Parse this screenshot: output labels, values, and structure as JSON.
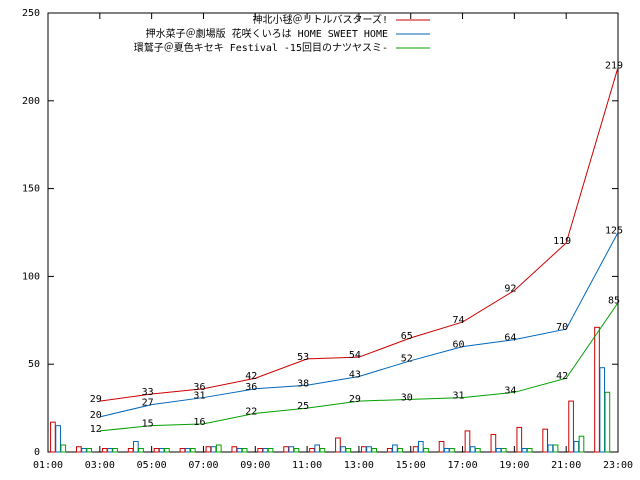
{
  "chart_data": {
    "type": "line",
    "xlim": [
      1,
      23
    ],
    "xticks": [
      {
        "value": 1,
        "label": "01:00"
      },
      {
        "value": 3,
        "label": "03:00"
      },
      {
        "value": 5,
        "label": "05:00"
      },
      {
        "value": 7,
        "label": "07:00"
      },
      {
        "value": 9,
        "label": "09:00"
      },
      {
        "value": 11,
        "label": "11:00"
      },
      {
        "value": 13,
        "label": "13:00"
      },
      {
        "value": 15,
        "label": "15:00"
      },
      {
        "value": 17,
        "label": "17:00"
      },
      {
        "value": 19,
        "label": "19:00"
      },
      {
        "value": 21,
        "label": "21:00"
      },
      {
        "value": 23,
        "label": "23:00"
      }
    ],
    "ylim": [
      0,
      250
    ],
    "yticks": [
      0,
      50,
      100,
      150,
      200,
      250
    ],
    "grid": false,
    "legend": "top-right",
    "bar_x": [
      1,
      2,
      3,
      4,
      5,
      6,
      7,
      8,
      9,
      10,
      11,
      12,
      13,
      14,
      15,
      16,
      17,
      18,
      19,
      20,
      21,
      22
    ],
    "series": [
      {
        "name": "神北小毬＠リトルバスターズ!",
        "color": "#cc0000",
        "x": [
          3,
          5,
          7,
          9,
          11,
          13,
          15,
          17,
          19,
          21,
          23
        ],
        "values": [
          29,
          33,
          36,
          42,
          53,
          54,
          65,
          74,
          92,
          119,
          219
        ],
        "bar_values": [
          17,
          3,
          2,
          2,
          2,
          2,
          3,
          3,
          2,
          3,
          2,
          8,
          3,
          2,
          3,
          6,
          12,
          10,
          14,
          13,
          29,
          71
        ]
      },
      {
        "name": "押水菜子＠劇場版 花咲くいろは HOME SWEET HOME",
        "color": "#0066bb",
        "x": [
          3,
          5,
          7,
          9,
          11,
          13,
          15,
          17,
          19,
          21,
          23
        ],
        "values": [
          20,
          27,
          31,
          36,
          38,
          43,
          52,
          60,
          64,
          70,
          125
        ],
        "bar_values": [
          15,
          2,
          2,
          6,
          2,
          2,
          3,
          2,
          2,
          3,
          4,
          3,
          3,
          4,
          6,
          2,
          3,
          2,
          2,
          4,
          6,
          48
        ]
      },
      {
        "name": "環鷲子＠夏色キセキ Festival -15回目のナツヤスミ-",
        "color": "#00a000",
        "x": [
          3,
          5,
          7,
          9,
          11,
          13,
          15,
          17,
          19,
          21,
          23
        ],
        "values": [
          12,
          15,
          16,
          22,
          25,
          29,
          30,
          31,
          34,
          42,
          85
        ],
        "bar_values": [
          4,
          2,
          2,
          2,
          2,
          2,
          4,
          2,
          2,
          2,
          2,
          2,
          2,
          2,
          2,
          2,
          2,
          2,
          2,
          4,
          9,
          34
        ]
      }
    ]
  }
}
